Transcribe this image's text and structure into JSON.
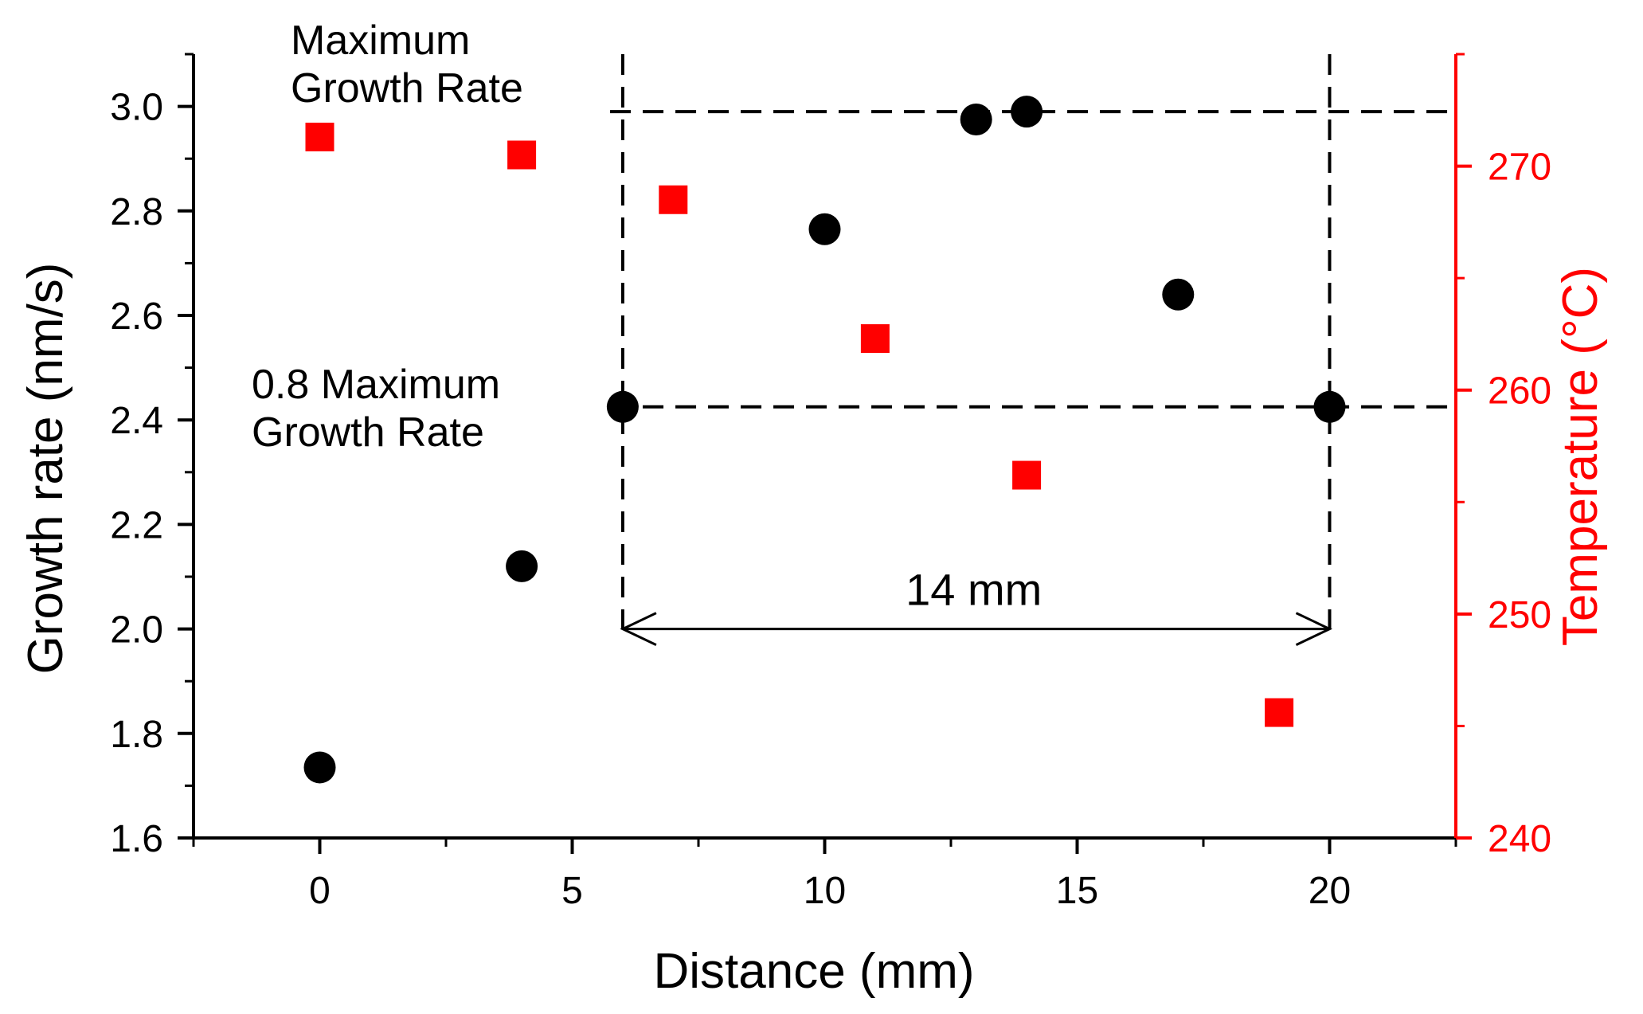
{
  "chart_data": {
    "type": "scatter",
    "xlabel": "Distance (mm)",
    "ylabel": "Growth rate (nm/s)",
    "y2label": "Temperature (°C)",
    "xlim": [
      -2.5,
      22.5
    ],
    "ylim": [
      1.6,
      3.1
    ],
    "y2lim": [
      240,
      275
    ],
    "x_ticks": [
      "0",
      "5",
      "10",
      "15",
      "20"
    ],
    "y_ticks": [
      "1.6",
      "1.8",
      "2.0",
      "2.2",
      "2.4",
      "2.6",
      "2.8",
      "3.0"
    ],
    "y2_ticks": [
      "240",
      "250",
      "260",
      "270"
    ],
    "colors": {
      "growth": "#000000",
      "temperature": "#ff0000"
    },
    "series": [
      {
        "axis": "left",
        "marker": "circle",
        "x": [
          0,
          4,
          6,
          10,
          13,
          14,
          17,
          20
        ],
        "y": [
          1.735,
          2.12,
          2.425,
          2.765,
          2.975,
          2.99,
          2.64,
          2.425
        ]
      },
      {
        "axis": "right",
        "marker": "square",
        "x": [
          0,
          4,
          7,
          11,
          14,
          19
        ],
        "y": [
          271.3,
          270.5,
          268.5,
          262.3,
          256.2,
          245.6
        ]
      }
    ],
    "reference_lines": [
      {
        "orientation": "horizontal",
        "y": 2.99,
        "x_from": 5.75,
        "x_to": 22.5
      },
      {
        "orientation": "horizontal",
        "y": 2.425,
        "x_from": 5.75,
        "x_to": 22.5
      },
      {
        "orientation": "vertical",
        "x": 6,
        "y_from": 2.0,
        "y_to": 3.1
      },
      {
        "orientation": "vertical",
        "x": 20,
        "y_from": 2.0,
        "y_to": 3.1
      }
    ],
    "span_arrow": {
      "x_from": 6,
      "x_to": 20,
      "y": 2.0,
      "label": "14 mm"
    },
    "annotations": [
      {
        "lines": [
          "Maximum",
          "Growth Rate"
        ]
      },
      {
        "lines": [
          "0.8 Maximum",
          "Growth Rate"
        ]
      }
    ]
  }
}
